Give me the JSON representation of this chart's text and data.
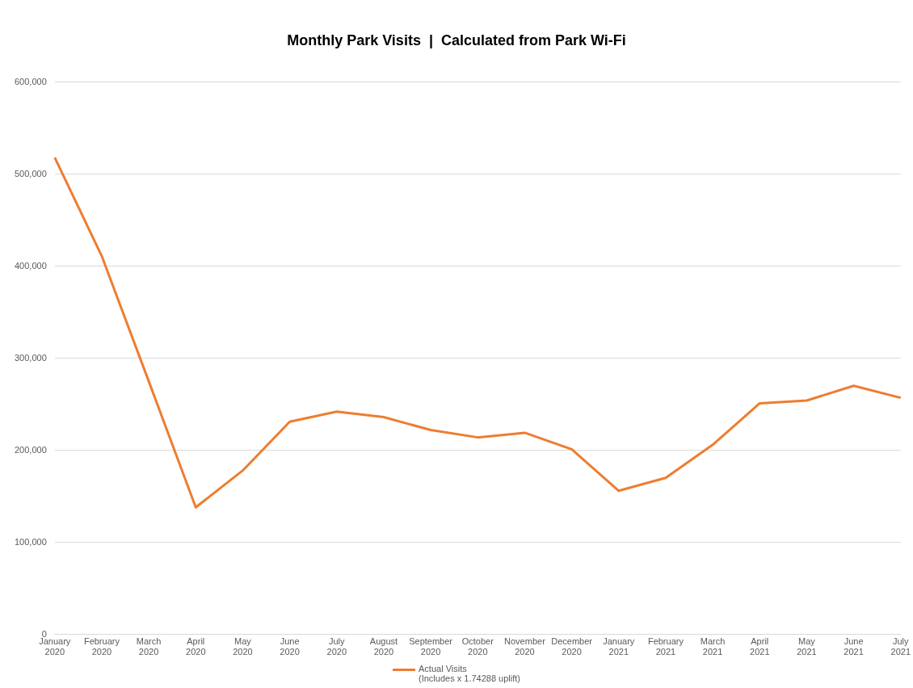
{
  "chart_data": {
    "type": "line",
    "title": "Monthly Park Visits  |  Calculated from Park Wi-Fi",
    "categories": [
      "January 2020",
      "February 2020",
      "March 2020",
      "April 2020",
      "May 2020",
      "June 2020",
      "July 2020",
      "August 2020",
      "September 2020",
      "October 2020",
      "November 2020",
      "December 2020",
      "January 2021",
      "February 2021",
      "March 2021",
      "April 2021",
      "May 2021",
      "June 2021",
      "July 2021"
    ],
    "series": [
      {
        "name": "Actual Visits\n(Includes x 1.74288 uplift)",
        "color": "#ed7d31",
        "values": [
          518000,
          411000,
          275000,
          138000,
          178000,
          231000,
          242000,
          236000,
          222000,
          214000,
          219000,
          201000,
          156000,
          170000,
          206000,
          251000,
          254000,
          270000,
          257000
        ]
      }
    ],
    "ylim": [
      0,
      600000
    ],
    "yticks": [
      0,
      {
        "value": 100000,
        "label": "100,000"
      },
      {
        "value": 200000,
        "label": "200,000"
      },
      {
        "value": 300000,
        "label": "300,000"
      },
      {
        "value": 400000,
        "label": "400,000"
      },
      {
        "value": 500000,
        "label": "500,000"
      },
      {
        "value": 600000,
        "label": "600,000"
      }
    ],
    "grid": "y",
    "legend": "bottom",
    "marker": "none",
    "line_style": "solid"
  }
}
